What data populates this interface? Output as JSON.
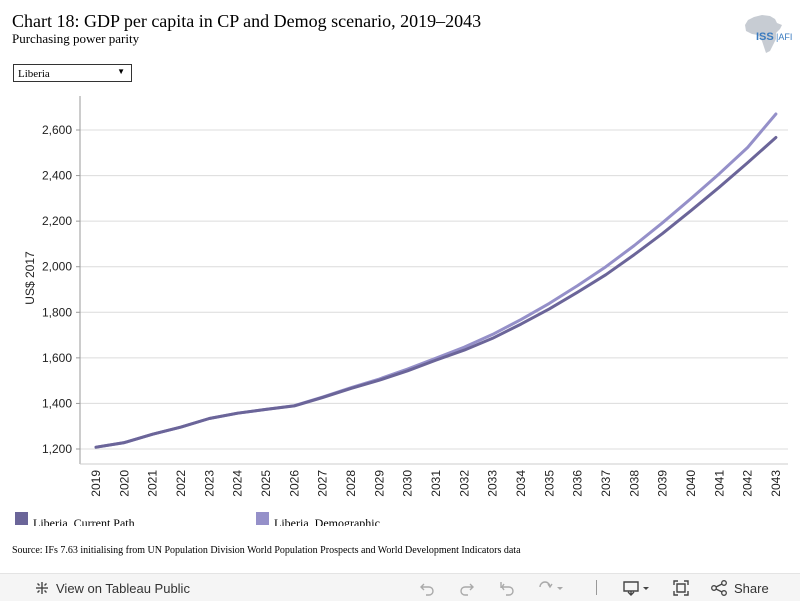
{
  "header": {
    "title": "Chart 18: GDP per capita in CP and Demog scenario, 2019–2043",
    "subtitle": "Purchasing power parity",
    "logo_text": "ISS|AFI"
  },
  "filter": {
    "selected": "Liberia"
  },
  "chart_data": {
    "type": "line",
    "title": "Chart 18: GDP per capita in CP and Demog scenario, 2019–2043",
    "subtitle": "Purchasing power parity",
    "xlabel": "",
    "ylabel": "US$ 2017",
    "ylim": [
      1150,
      2750
    ],
    "yticks": [
      1200,
      1400,
      1600,
      1800,
      2000,
      2200,
      2400,
      2600
    ],
    "ytick_labels": [
      "1,200",
      "1,400",
      "1,600",
      "1,800",
      "2,000",
      "2,200",
      "2,400",
      "2,600"
    ],
    "grid": true,
    "legend_position": "bottom",
    "x": [
      "2019",
      "2020",
      "2021",
      "2022",
      "2023",
      "2024",
      "2025",
      "2026",
      "2027",
      "2028",
      "2029",
      "2030",
      "2031",
      "2032",
      "2033",
      "2034",
      "2035",
      "2036",
      "2037",
      "2038",
      "2039",
      "2040",
      "2041",
      "2042",
      "2043"
    ],
    "series": [
      {
        "name": "Liberia, Current Path",
        "color": "#6b6599",
        "values": [
          1208,
          1228,
          1265,
          1296,
          1334,
          1357,
          1374,
          1389,
          1426,
          1466,
          1502,
          1543,
          1590,
          1634,
          1686,
          1748,
          1815,
          1888,
          1965,
          2053,
          2146,
          2246,
          2349,
          2456,
          2567
        ]
      },
      {
        "name": "Liberia, Demographic",
        "color": "#9590c9",
        "values": [
          1208,
          1228,
          1265,
          1296,
          1334,
          1357,
          1374,
          1390,
          1428,
          1469,
          1507,
          1551,
          1599,
          1647,
          1703,
          1768,
          1839,
          1917,
          2000,
          2093,
          2193,
          2299,
          2408,
          2523,
          2670
        ]
      }
    ]
  },
  "source": "Source: IFs 7.63 initialising from UN Population Division World Population Prospects and World Development Indicators data",
  "toolbar": {
    "view_label": "View on Tableau Public",
    "share_label": "Share"
  }
}
